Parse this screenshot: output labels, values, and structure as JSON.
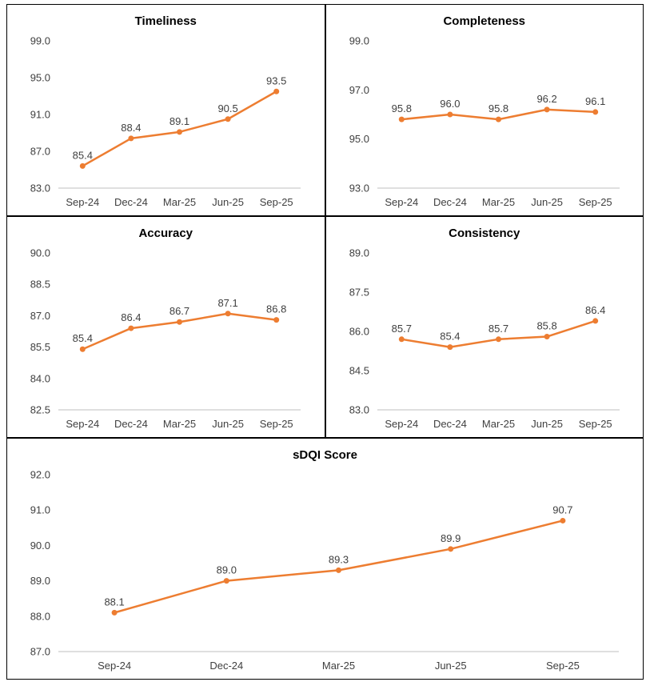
{
  "layout": {
    "background": "#FFFFFF",
    "panel_border_color": "#000000"
  },
  "style": {
    "line_color": "#ED7D31",
    "marker_color": "#ED7D31",
    "axis_line_color": "#BFBFBF",
    "tick_label_color": "#404040",
    "data_label_color": "#404040",
    "title_color": "#000000"
  },
  "chart_data": [
    {
      "type": "line",
      "title": "Timeliness",
      "categories": [
        "Sep-24",
        "Dec-24",
        "Mar-25",
        "Jun-25",
        "Sep-25"
      ],
      "values": [
        85.4,
        88.4,
        89.1,
        90.5,
        93.5
      ],
      "ylim": [
        83.0,
        99.0
      ],
      "yticks": [
        83.0,
        87.0,
        91.0,
        95.0,
        99.0
      ],
      "grid": false,
      "legend": "none",
      "data_labels": true
    },
    {
      "type": "line",
      "title": "Completeness",
      "categories": [
        "Sep-24",
        "Dec-24",
        "Mar-25",
        "Jun-25",
        "Sep-25"
      ],
      "values": [
        95.8,
        96.0,
        95.8,
        96.2,
        96.1
      ],
      "ylim": [
        93.0,
        99.0
      ],
      "yticks": [
        93.0,
        95.0,
        97.0,
        99.0
      ],
      "grid": false,
      "legend": "none",
      "data_labels": true
    },
    {
      "type": "line",
      "title": "Accuracy",
      "categories": [
        "Sep-24",
        "Dec-24",
        "Mar-25",
        "Jun-25",
        "Sep-25"
      ],
      "values": [
        85.4,
        86.4,
        86.7,
        87.1,
        86.8
      ],
      "ylim": [
        82.5,
        90.0
      ],
      "yticks": [
        82.5,
        84.0,
        85.5,
        87.0,
        88.5,
        90.0
      ],
      "grid": false,
      "legend": "none",
      "data_labels": true
    },
    {
      "type": "line",
      "title": "Consistency",
      "categories": [
        "Sep-24",
        "Dec-24",
        "Mar-25",
        "Jun-25",
        "Sep-25"
      ],
      "values": [
        85.7,
        85.4,
        85.7,
        85.8,
        86.4
      ],
      "ylim": [
        83.0,
        89.0
      ],
      "yticks": [
        83.0,
        84.5,
        86.0,
        87.5,
        89.0
      ],
      "grid": false,
      "legend": "none",
      "data_labels": true
    },
    {
      "type": "line",
      "title": "sDQI Score",
      "categories": [
        "Sep-24",
        "Dec-24",
        "Mar-25",
        "Jun-25",
        "Sep-25"
      ],
      "values": [
        88.1,
        89.0,
        89.3,
        89.9,
        90.7
      ],
      "ylim": [
        87.0,
        92.0
      ],
      "yticks": [
        87.0,
        88.0,
        89.0,
        90.0,
        91.0,
        92.0
      ],
      "grid": false,
      "legend": "none",
      "data_labels": true
    }
  ]
}
